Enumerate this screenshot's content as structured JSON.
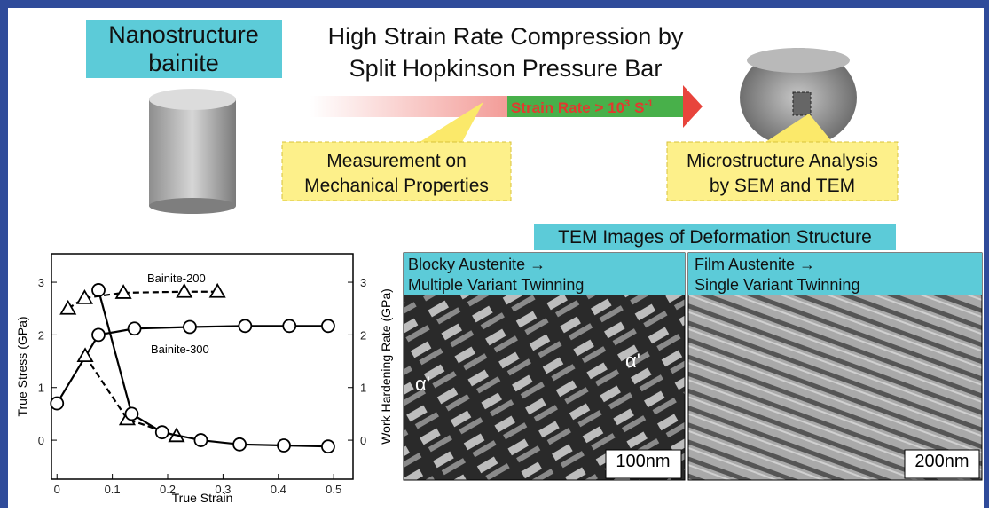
{
  "sample_label": {
    "lines": [
      "Nanostructure",
      "bainite"
    ]
  },
  "test_title": {
    "lines": [
      "High Strain Rate Compression by",
      "Split Hopkinson Pressure Bar"
    ]
  },
  "strain_rate": {
    "text": "Strain Rate > 10",
    "exponent": "3",
    "unit": "S",
    "unit_exponent": "-1"
  },
  "callouts": [
    {
      "lines": [
        "Measurement on",
        "Mechanical Properties"
      ]
    },
    {
      "lines": [
        "Microstructure Analysis",
        "by SEM and TEM"
      ]
    }
  ],
  "tem_title": "TEM Images of Deformation Structure",
  "tem_panels": [
    {
      "lines": [
        "Blocky Austenite →",
        "Multiple Variant Twinning"
      ],
      "phase_labels": [
        "α'",
        "α'"
      ],
      "scale_bar": "100nm"
    },
    {
      "lines": [
        "Film Austenite →",
        "Single Variant Twinning"
      ],
      "scale_bar": "200nm"
    }
  ],
  "chart_data": {
    "type": "line",
    "x_label": "True Strain",
    "y_label": "True Stress (GPa)",
    "y2_label": "Work Hardening Rate (GPa)",
    "xlim": [
      -0.01,
      0.535
    ],
    "xticks": [
      0,
      0.1,
      0.2,
      0.3,
      0.4,
      0.5
    ],
    "ylim": [
      -0.74,
      3.54
    ],
    "yticks": [
      0,
      1,
      2,
      3
    ],
    "y2lim": [
      -0.74,
      3.54
    ],
    "y2ticks": [
      0,
      1,
      2,
      3
    ],
    "annotations": [
      "Bainite-200",
      "Bainite-300"
    ],
    "series": [
      {
        "name": "Bainite-200",
        "color": "#000000",
        "dash": true,
        "marker": "triangle",
        "x": [
          0.02,
          0.05,
          0.12,
          0.23,
          0.29
        ],
        "values": [
          2.5,
          2.7,
          2.8,
          2.82,
          2.82
        ]
      },
      {
        "name": "Bainite-300",
        "color": "#000000",
        "dash": false,
        "marker": "circle",
        "x": [
          0,
          0.075,
          0.14,
          0.24,
          0.34,
          0.42,
          0.49
        ],
        "values": [
          0.7,
          2.0,
          2.12,
          2.15,
          2.17,
          2.17,
          2.17
        ]
      },
      {
        "color": "#000000",
        "dash": true,
        "marker": "triangle",
        "axis": "y2",
        "x": [
          0.051,
          0.127,
          0.216
        ],
        "values": [
          1.6,
          0.4,
          0.08
        ]
      },
      {
        "color": "#000000",
        "dash": false,
        "marker": "circle",
        "axis": "y2",
        "x": [
          0.075,
          0.135,
          0.19,
          0.26,
          0.33,
          0.41,
          0.49
        ],
        "values": [
          2.85,
          0.5,
          0.15,
          0.0,
          -0.08,
          -0.1,
          -0.12
        ]
      }
    ]
  }
}
